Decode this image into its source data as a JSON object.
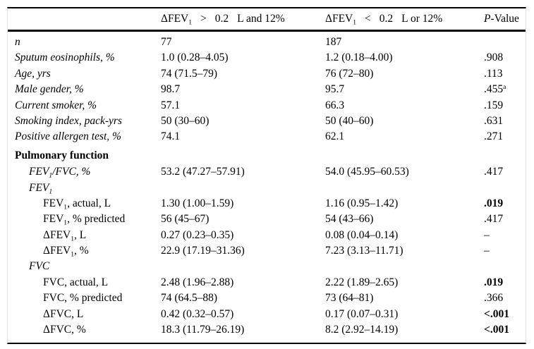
{
  "page": {
    "background": "#ffffff",
    "text_color": "#000000",
    "rule_color": "#000000"
  },
  "table": {
    "header": {
      "blank_label": "",
      "group1_parts": [
        "ΔFEV~1~",
        ">",
        "0.2",
        "L and 12%"
      ],
      "group2_parts": [
        "ΔFEV~1~",
        "<",
        "0.2",
        "L or 12%"
      ],
      "pvalue_italic": "P",
      "pvalue_rest": "-Value"
    },
    "rows": [
      {
        "label": "n",
        "italic": true,
        "indent": 0,
        "c1": "77",
        "c2": "187",
        "p": ""
      },
      {
        "label": "Sputum eosinophils, %",
        "italic": true,
        "indent": 0,
        "c1": "1.0 (0.28–4.05)",
        "c2": "1.2 (0.18–4.00)",
        "p": ".908"
      },
      {
        "label": "Age, yrs",
        "italic": true,
        "indent": 0,
        "c1": "74 (71.5–79)",
        "c2": "76 (72–80)",
        "p": ".113"
      },
      {
        "label": "Male gender, %",
        "italic": true,
        "indent": 0,
        "c1": "98.7",
        "c2": "95.7",
        "p": ".455^a^"
      },
      {
        "label": "Current smoker, %",
        "italic": true,
        "indent": 0,
        "c1": "57.1",
        "c2": "66.3",
        "p": ".159"
      },
      {
        "label": "Smoking index, pack-yrs",
        "italic": true,
        "indent": 0,
        "c1": "50 (30–60)",
        "c2": "50 (40–60)",
        "p": ".631"
      },
      {
        "label": "Positive allergen test, %",
        "italic": true,
        "indent": 0,
        "c1": "74.1",
        "c2": "62.1",
        "p": ".271"
      },
      {
        "label": "Pulmonary function",
        "bold": true,
        "indent": 0,
        "section": true,
        "c1": "",
        "c2": "",
        "p": ""
      },
      {
        "label": "FEV~1~/FVC, %",
        "italic": true,
        "indent": 1,
        "c1": "53.2 (47.27–57.91)",
        "c2": "54.0 (45.95–60.53)",
        "p": ".417"
      },
      {
        "label": "FEV~1~",
        "italic": true,
        "indent": 1,
        "c1": "",
        "c2": "",
        "p": ""
      },
      {
        "label": "FEV~1~, actual, L",
        "indent": 2,
        "c1": "1.30 (1.00–1.59)",
        "c2": "1.16 (0.95–1.42)",
        "p": ".019",
        "p_bold": true
      },
      {
        "label": "FEV~1~, % predicted",
        "indent": 2,
        "c1": "56 (45–67)",
        "c2": "54 (43–66)",
        "p": ".417"
      },
      {
        "label": "ΔFEV~1~, L",
        "indent": 2,
        "c1": "0.27 (0.23–0.35)",
        "c2": "0.08 (0.04–0.14)",
        "p": "–"
      },
      {
        "label": "ΔFEV~1~, %",
        "indent": 2,
        "c1": "22.9 (17.19–31.36)",
        "c2": "7.23 (3.13–11.71)",
        "p": "–"
      },
      {
        "label": "FVC",
        "italic": true,
        "indent": 1,
        "c1": "",
        "c2": "",
        "p": ""
      },
      {
        "label": "FVC, actual, L",
        "indent": 2,
        "c1": "2.48 (1.96–2.88)",
        "c2": "2.22 (1.89–2.65)",
        "p": ".019",
        "p_bold": true
      },
      {
        "label": "FVC, % predicted",
        "indent": 2,
        "c1": "74 (64.5–88)",
        "c2": "73 (64–81)",
        "p": ".366"
      },
      {
        "label": "ΔFVC, L",
        "indent": 2,
        "c1": "0.42 (0.32–0.57)",
        "c2": "0.17 (0.07–0.31)",
        "p": "<.001",
        "p_bold": true
      },
      {
        "label": "ΔFVC, %",
        "indent": 2,
        "c1": "18.3 (11.79–26.19)",
        "c2": "8.2 (2.92–14.19)",
        "p": "<.001",
        "p_bold": true
      }
    ]
  }
}
